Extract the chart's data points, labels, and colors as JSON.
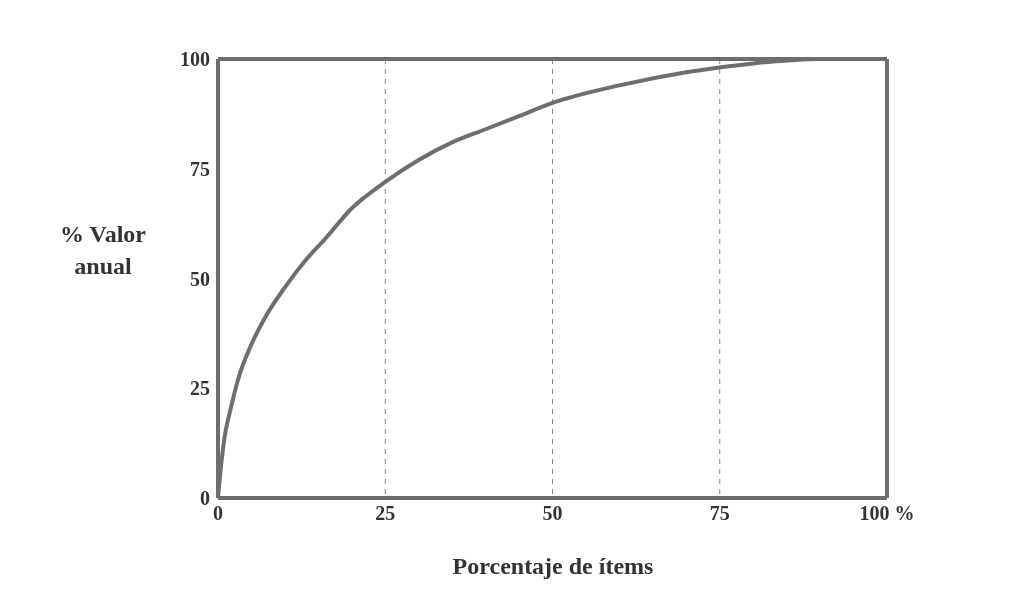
{
  "chart_data": {
    "type": "line",
    "xlabel": "Porcentaje de ítems",
    "ylabel": "% Valor anual",
    "x": [
      0,
      0.5,
      1,
      2,
      3,
      5,
      7,
      10,
      13,
      16,
      20,
      25,
      30,
      35,
      40,
      45,
      50,
      60,
      70,
      80,
      90,
      100
    ],
    "series": [
      {
        "color": "#6e6e6e",
        "values": [
          0,
          8,
          14,
          21,
          27,
          35,
          41,
          48,
          54,
          59,
          66,
          72,
          77,
          81,
          84,
          87,
          90,
          94,
          97,
          99,
          100,
          100
        ]
      }
    ],
    "xlim": [
      0,
      100
    ],
    "xticks": [
      0,
      25,
      50,
      75,
      {
        "value": 100,
        "label": "100 %"
      }
    ],
    "ylim": [
      0,
      100
    ],
    "yticks": [
      0,
      25,
      50,
      75,
      100
    ],
    "grid": "x",
    "marker": "none",
    "line_style": "solid"
  }
}
